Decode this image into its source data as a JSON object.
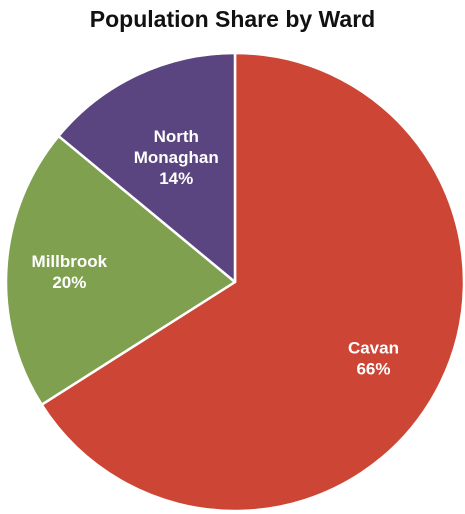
{
  "chart_data": {
    "type": "pie",
    "title": "Population Share by Ward",
    "slices": [
      {
        "label": [
          "Cavan"
        ],
        "value": 66,
        "value_label": "66%",
        "color": "#cc4535"
      },
      {
        "label": [
          "Millbrook"
        ],
        "value": 20,
        "value_label": "20%",
        "color": "#7ea04f"
      },
      {
        "label": [
          "North",
          "Monaghan"
        ],
        "value": 14,
        "value_label": "14%",
        "color": "#5b4580"
      }
    ],
    "start_angle_deg": 0,
    "direction": "clockwise",
    "legend": "none",
    "label_color": "#ffffff",
    "slice_border_color": "#ffffff"
  }
}
